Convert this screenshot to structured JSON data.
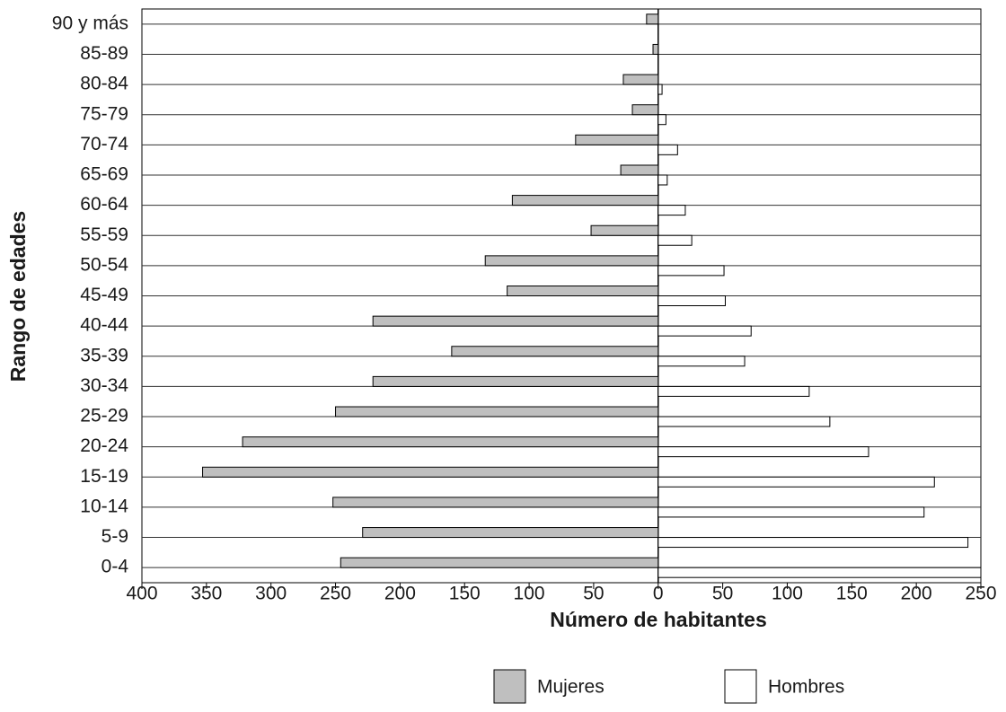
{
  "chart_data": {
    "type": "pyramid",
    "x_label": "Número de habitantes",
    "y_label": "Rango de edades",
    "categories": [
      "0-4",
      "5-9",
      "10-14",
      "15-19",
      "20-24",
      "25-29",
      "30-34",
      "35-39",
      "40-44",
      "45-49",
      "50-54",
      "55-59",
      "60-64",
      "65-69",
      "70-74",
      "75-79",
      "80-84",
      "85-89",
      "90 y más"
    ],
    "series": [
      {
        "name": "Mujeres",
        "color": "#bfbfbf",
        "values": [
          -246,
          -229,
          -252,
          -353,
          -322,
          -250,
          -221,
          -160,
          -221,
          -117,
          -134,
          -52,
          -113,
          -29,
          -64,
          -20,
          -27,
          -4,
          -9
        ]
      },
      {
        "name": "Hombres",
        "color": "#ffffff",
        "values": [
          250,
          240,
          206,
          214,
          163,
          133,
          117,
          67,
          72,
          52,
          51,
          26,
          21,
          7,
          15,
          6,
          3,
          0,
          0
        ]
      }
    ],
    "xlim": [
      -400,
      250
    ],
    "xticks": [
      {
        "value": -400,
        "label": "400"
      },
      {
        "value": -350,
        "label": "350"
      },
      {
        "value": -300,
        "label": "300"
      },
      {
        "value": -250,
        "label": "250"
      },
      {
        "value": -200,
        "label": "200"
      },
      {
        "value": -150,
        "label": "150"
      },
      {
        "value": -100,
        "label": "100"
      },
      {
        "value": -50,
        "label": "50"
      },
      0,
      50,
      100,
      150,
      200,
      250
    ]
  }
}
